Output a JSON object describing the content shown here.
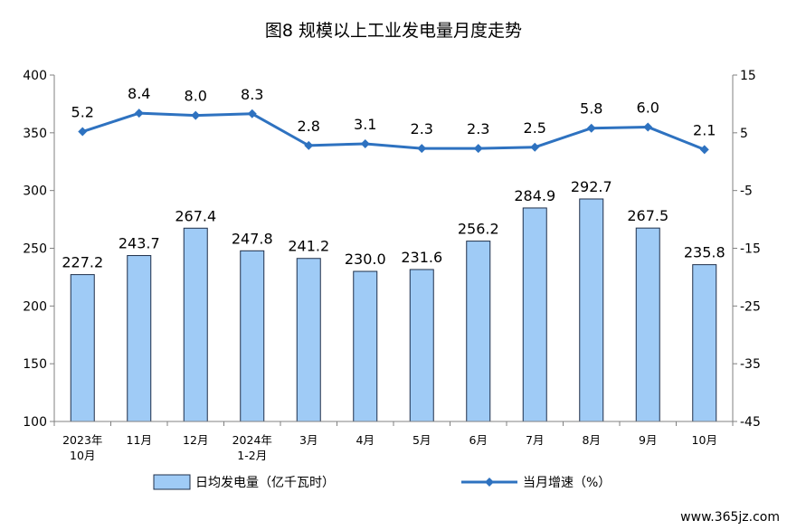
{
  "chart_data": {
    "type": "bar+line",
    "title": "图8  规模以上工业发电量月度走势",
    "categories": [
      [
        "2023年",
        "10月"
      ],
      [
        "11月"
      ],
      [
        "12月"
      ],
      [
        "2024年",
        "1-2月"
      ],
      [
        "3月"
      ],
      [
        "4月"
      ],
      [
        "5月"
      ],
      [
        "6月"
      ],
      [
        "7月"
      ],
      [
        "8月"
      ],
      [
        "9月"
      ],
      [
        "10月"
      ]
    ],
    "series": [
      {
        "name": "日均发电量（亿千瓦时）",
        "type": "bar",
        "axis": "left",
        "values": [
          227.2,
          243.7,
          267.4,
          247.8,
          241.2,
          230.0,
          231.6,
          256.2,
          284.9,
          292.7,
          267.5,
          235.8
        ],
        "labels": [
          "227.2",
          "243.7",
          "267.4",
          "247.8",
          "241.2",
          "230.0",
          "231.6",
          "256.2",
          "284.9",
          "292.7",
          "267.5",
          "235.8"
        ],
        "color": "#9fcbf6",
        "edge_color": "#1f2f4a"
      },
      {
        "name": "当月增速（%）",
        "type": "line",
        "axis": "right",
        "values": [
          5.2,
          8.4,
          8.0,
          8.3,
          2.8,
          3.1,
          2.3,
          2.3,
          2.5,
          5.8,
          6.0,
          2.1
        ],
        "labels": [
          "5.2",
          "8.4",
          "8.0",
          "8.3",
          "2.8",
          "3.1",
          "2.3",
          "2.3",
          "2.5",
          "5.8",
          "6.0",
          "2.1"
        ],
        "color": "#2e72c0"
      }
    ],
    "y_left": {
      "min": 100,
      "max": 400,
      "ticks": [
        "100",
        "150",
        "200",
        "250",
        "300",
        "350",
        "400"
      ]
    },
    "y_right": {
      "min": -45,
      "max": 15,
      "ticks": [
        "-45",
        "-35",
        "-25",
        "-15",
        "-5",
        "5",
        "15"
      ]
    },
    "grid": false,
    "legend_position": "bottom"
  },
  "watermark": "www.365jz.com"
}
